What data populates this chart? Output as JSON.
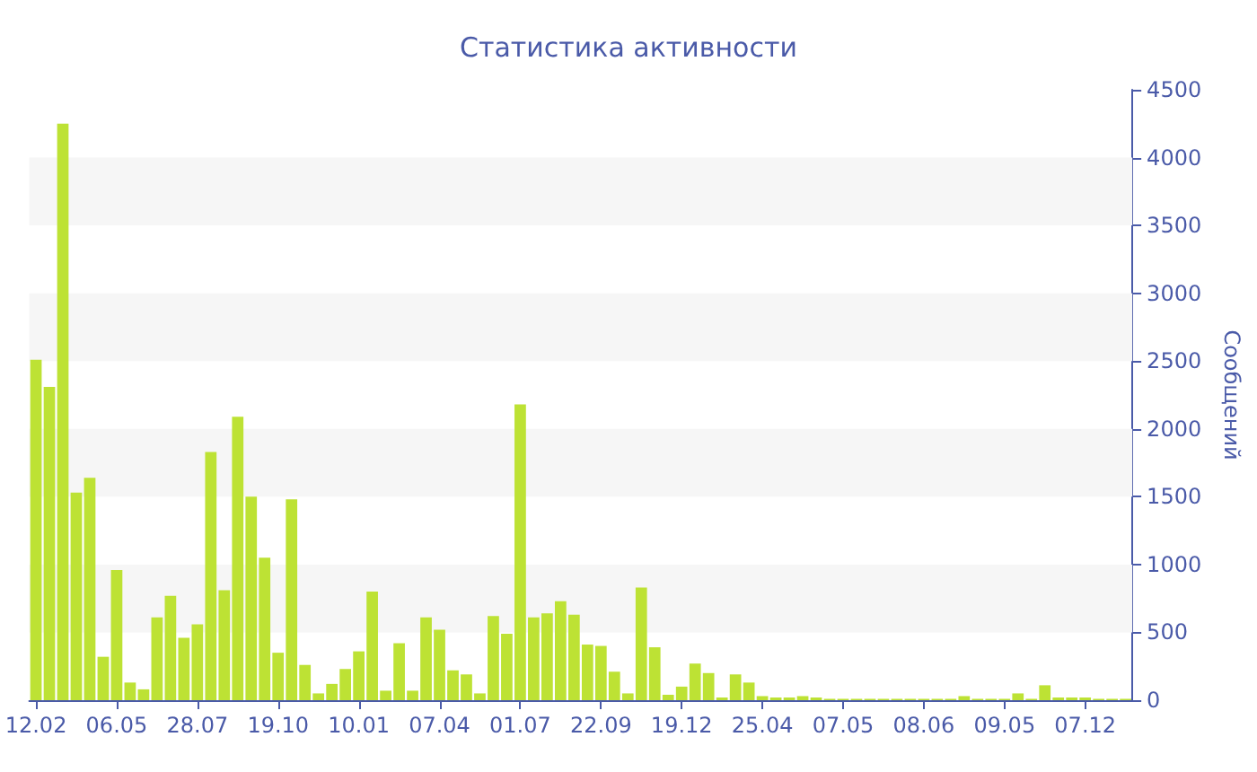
{
  "chart_data": {
    "type": "bar",
    "title": "Статистика активности",
    "ylabel": "Сообщений",
    "categories": [
      "12.02",
      null,
      null,
      null,
      null,
      null,
      "06.05",
      null,
      null,
      null,
      null,
      null,
      "28.07",
      null,
      null,
      null,
      null,
      null,
      "19.10",
      null,
      null,
      null,
      null,
      null,
      "10.01",
      null,
      null,
      null,
      null,
      null,
      "07.04",
      null,
      null,
      null,
      null,
      null,
      "01.07",
      null,
      null,
      null,
      null,
      null,
      "22.09",
      null,
      null,
      null,
      null,
      null,
      "19.12",
      null,
      null,
      null,
      null,
      null,
      "25.04",
      null,
      null,
      null,
      null,
      null,
      "07.05",
      null,
      null,
      null,
      null,
      null,
      "08.06",
      null,
      null,
      null,
      null,
      null,
      "09.05",
      null,
      null,
      null,
      null,
      null,
      "07.12",
      null,
      null,
      null
    ],
    "values": [
      2510,
      2310,
      4250,
      1530,
      1640,
      320,
      960,
      130,
      80,
      610,
      770,
      460,
      560,
      1830,
      810,
      2090,
      1500,
      1050,
      350,
      1480,
      260,
      50,
      120,
      230,
      360,
      800,
      70,
      420,
      70,
      610,
      520,
      220,
      190,
      50,
      620,
      490,
      2180,
      610,
      640,
      730,
      630,
      410,
      400,
      210,
      50,
      830,
      390,
      40,
      100,
      270,
      200,
      20,
      190,
      130,
      30,
      20,
      20,
      30,
      20,
      10,
      10,
      10,
      10,
      10,
      10,
      10,
      10,
      10,
      10,
      30,
      10,
      10,
      10,
      50,
      10,
      110,
      20,
      20,
      20,
      10,
      10,
      10
    ],
    "color": "#bde234",
    "ylim": [
      0,
      4500
    ],
    "yticks": [
      0,
      500,
      1000,
      1500,
      2000,
      2500,
      3000,
      3500,
      4000,
      4500
    ],
    "bands": [
      {
        "axis": "y",
        "from": 500,
        "to": 1000,
        "color": "#f6f6f6"
      },
      {
        "axis": "y",
        "from": 1500,
        "to": 2000,
        "color": "#f6f6f6"
      },
      {
        "axis": "y",
        "from": 2500,
        "to": 3000,
        "color": "#f6f6f6"
      },
      {
        "axis": "y",
        "from": 3500,
        "to": 4000,
        "color": "#f6f6f6"
      }
    ]
  }
}
